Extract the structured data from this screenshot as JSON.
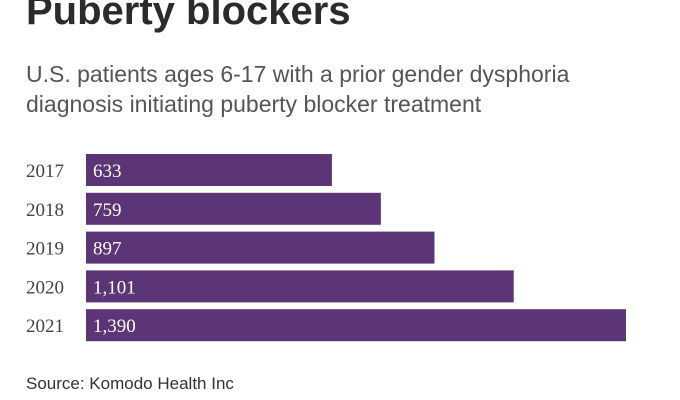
{
  "title": "Puberty blockers",
  "subtitle": "U.S. patients ages 6-17 with a prior gender dysphoria diagnosis initiating puberty blocker treatment",
  "source": "Source: Komodo Health Inc",
  "colors": {
    "bar": "#5c3577"
  },
  "chart_data": {
    "type": "bar",
    "orientation": "horizontal",
    "categories": [
      "2017",
      "2018",
      "2019",
      "2020",
      "2021"
    ],
    "values": [
      633,
      759,
      897,
      1101,
      1390
    ],
    "value_labels": [
      "633",
      "759",
      "897",
      "1,101",
      "1,390"
    ],
    "title": "Puberty blockers",
    "xlabel": "",
    "ylabel": "",
    "xlim": [
      0,
      1390
    ],
    "grid": false,
    "legend": "none"
  }
}
